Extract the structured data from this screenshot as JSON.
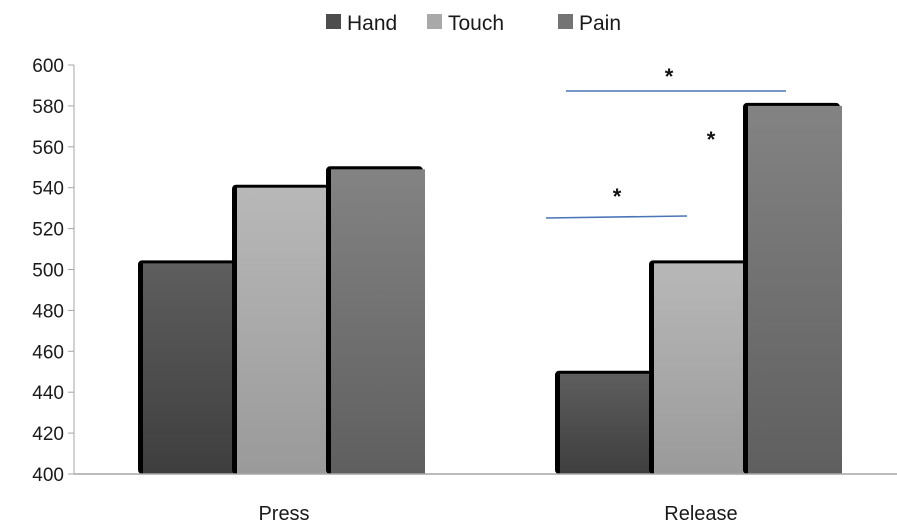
{
  "chart_data": {
    "type": "bar",
    "categories": [
      "Press",
      "Release"
    ],
    "series": [
      {
        "name": "Hand",
        "values": [
          503,
          449
        ],
        "color": "#4d4d4d"
      },
      {
        "name": "Touch",
        "values": [
          540,
          503
        ],
        "color": "#a9a9a9"
      },
      {
        "name": "Pain",
        "values": [
          549,
          580
        ],
        "color": "#747474"
      }
    ],
    "ylim": [
      400,
      600
    ],
    "yticks": [
      400,
      420,
      440,
      460,
      480,
      500,
      520,
      540,
      560,
      580,
      600
    ],
    "legend_position": "top",
    "grid": false,
    "annotations": [
      {
        "text": "*",
        "category": "Release",
        "between": [
          "Hand",
          "Touch"
        ],
        "line": true,
        "y_value": 525
      },
      {
        "text": "*",
        "category": "Release",
        "between": [
          "Hand",
          "Pain"
        ],
        "line": true,
        "y_value": 588
      },
      {
        "text": "*",
        "category": "Release",
        "between": [
          "Touch",
          "Pain"
        ],
        "line": false,
        "y_value": 565
      }
    ]
  }
}
